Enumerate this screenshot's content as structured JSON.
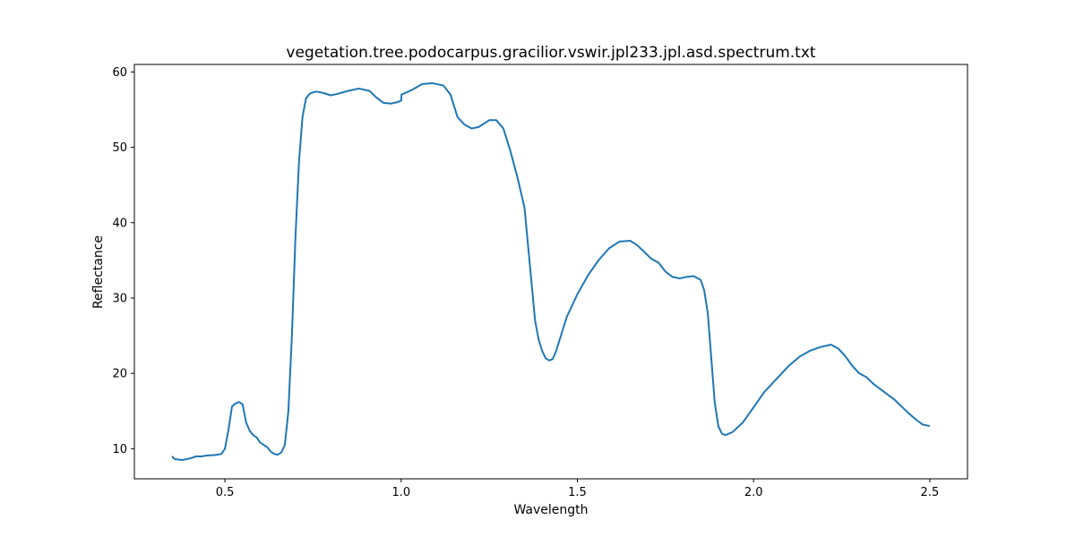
{
  "chart_data": {
    "type": "line",
    "title": "vegetation.tree.podocarpus.gracilior.vswir.jpl233.jpl.asd.spectrum.txt",
    "xlabel": "Wavelength",
    "ylabel": "Reflectance",
    "xlim": [
      0.243,
      2.607
    ],
    "ylim": [
      6.0,
      61.0
    ],
    "xticks": [
      0.5,
      1.0,
      1.5,
      2.0,
      2.5
    ],
    "xtick_labels": [
      "0.5",
      "1.0",
      "1.5",
      "2.0",
      "2.5"
    ],
    "yticks": [
      10,
      20,
      30,
      40,
      50,
      60
    ],
    "ytick_labels": [
      "10",
      "20",
      "30",
      "40",
      "50",
      "60"
    ],
    "grid": false,
    "line_color": "#1f77b4",
    "series": [
      {
        "x": [
          0.35,
          0.355,
          0.36,
          0.38,
          0.4,
          0.42,
          0.43,
          0.45,
          0.47,
          0.49,
          0.5,
          0.51,
          0.52,
          0.53,
          0.54,
          0.55,
          0.56,
          0.57,
          0.58,
          0.59,
          0.6,
          0.62,
          0.63,
          0.64,
          0.65,
          0.66,
          0.67,
          0.68,
          0.69,
          0.7,
          0.71,
          0.72,
          0.73,
          0.74,
          0.75,
          0.76,
          0.78,
          0.8,
          0.82,
          0.85,
          0.88,
          0.91,
          0.93,
          0.95,
          0.97,
          0.99,
          1.0,
          1.001,
          1.03,
          1.06,
          1.09,
          1.12,
          1.14,
          1.16,
          1.18,
          1.2,
          1.22,
          1.25,
          1.27,
          1.29,
          1.31,
          1.33,
          1.35,
          1.37,
          1.38,
          1.39,
          1.4,
          1.41,
          1.42,
          1.43,
          1.44,
          1.45,
          1.47,
          1.5,
          1.53,
          1.56,
          1.59,
          1.62,
          1.65,
          1.67,
          1.69,
          1.71,
          1.73,
          1.75,
          1.77,
          1.79,
          1.81,
          1.83,
          1.85,
          1.86,
          1.87,
          1.88,
          1.89,
          1.9,
          1.91,
          1.92,
          1.94,
          1.97,
          2.0,
          2.03,
          2.06,
          2.1,
          2.13,
          2.16,
          2.19,
          2.22,
          2.24,
          2.26,
          2.28,
          2.3,
          2.32,
          2.34,
          2.36,
          2.38,
          2.4,
          2.42,
          2.44,
          2.46,
          2.48,
          2.5
        ],
        "y": [
          9.0,
          8.7,
          8.6,
          8.5,
          8.7,
          9.0,
          8.95,
          9.1,
          9.15,
          9.3,
          10.0,
          12.5,
          15.6,
          16.0,
          16.2,
          15.9,
          13.5,
          12.4,
          11.8,
          11.5,
          10.8,
          10.2,
          9.6,
          9.3,
          9.2,
          9.5,
          10.5,
          15.0,
          25.0,
          38.0,
          48.0,
          54.0,
          56.5,
          57.1,
          57.3,
          57.4,
          57.2,
          56.9,
          57.1,
          57.5,
          57.8,
          57.5,
          56.6,
          55.9,
          55.8,
          56.0,
          56.2,
          57.0,
          57.6,
          58.4,
          58.5,
          58.2,
          57.0,
          54.0,
          53.0,
          52.5,
          52.7,
          53.6,
          53.6,
          52.5,
          49.5,
          46.0,
          42.0,
          32.0,
          27.0,
          24.5,
          23.0,
          22.0,
          21.7,
          21.9,
          23.0,
          24.5,
          27.5,
          30.5,
          33.0,
          35.0,
          36.6,
          37.5,
          37.6,
          37.0,
          36.1,
          35.2,
          34.7,
          33.5,
          32.8,
          32.6,
          32.8,
          32.9,
          32.4,
          31.0,
          28.0,
          22.0,
          16.0,
          13.0,
          12.0,
          11.8,
          12.2,
          13.5,
          15.5,
          17.5,
          19.0,
          21.0,
          22.2,
          23.0,
          23.5,
          23.8,
          23.3,
          22.3,
          21.0,
          20.0,
          19.5,
          18.6,
          17.9,
          17.2,
          16.5,
          15.6,
          14.7,
          13.9,
          13.2,
          13.0
        ]
      }
    ]
  }
}
